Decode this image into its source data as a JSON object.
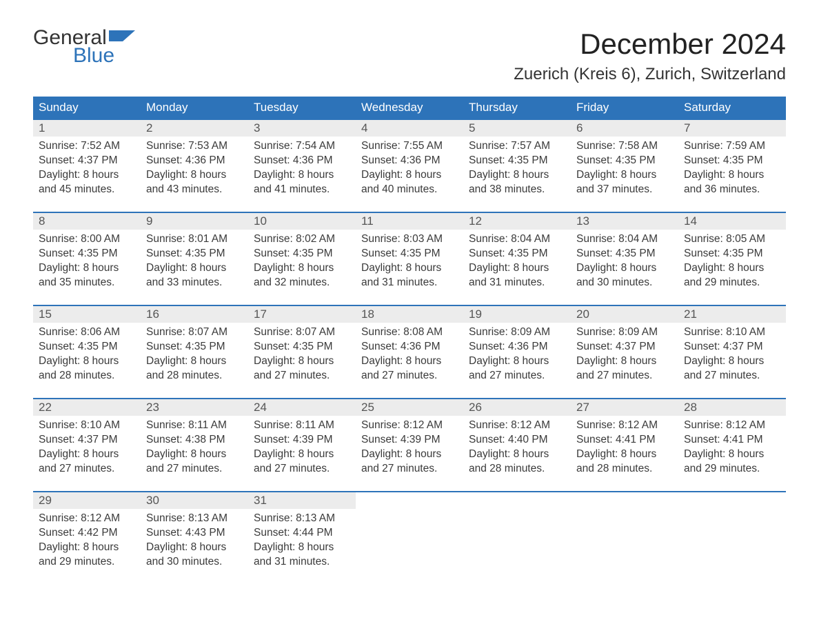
{
  "logo": {
    "word1": "General",
    "word2": "Blue",
    "accent_color": "#2d73b9"
  },
  "header": {
    "month_title": "December 2024",
    "location": "Zuerich (Kreis 6), Zurich, Switzerland"
  },
  "colors": {
    "header_bg": "#2d73b9",
    "header_text": "#ffffff",
    "daynum_bg": "#ececec",
    "text": "#3a3a3a",
    "row_border": "#2d73b9",
    "background": "#ffffff"
  },
  "typography": {
    "title_fontsize_pt": 32,
    "location_fontsize_pt": 18,
    "th_fontsize_pt": 13,
    "body_fontsize_pt": 12
  },
  "calendar": {
    "columns": [
      "Sunday",
      "Monday",
      "Tuesday",
      "Wednesday",
      "Thursday",
      "Friday",
      "Saturday"
    ],
    "weeks": [
      [
        {
          "n": "1",
          "sunrise": "Sunrise: 7:52 AM",
          "sunset": "Sunset: 4:37 PM",
          "d1": "Daylight: 8 hours",
          "d2": "and 45 minutes."
        },
        {
          "n": "2",
          "sunrise": "Sunrise: 7:53 AM",
          "sunset": "Sunset: 4:36 PM",
          "d1": "Daylight: 8 hours",
          "d2": "and 43 minutes."
        },
        {
          "n": "3",
          "sunrise": "Sunrise: 7:54 AM",
          "sunset": "Sunset: 4:36 PM",
          "d1": "Daylight: 8 hours",
          "d2": "and 41 minutes."
        },
        {
          "n": "4",
          "sunrise": "Sunrise: 7:55 AM",
          "sunset": "Sunset: 4:36 PM",
          "d1": "Daylight: 8 hours",
          "d2": "and 40 minutes."
        },
        {
          "n": "5",
          "sunrise": "Sunrise: 7:57 AM",
          "sunset": "Sunset: 4:35 PM",
          "d1": "Daylight: 8 hours",
          "d2": "and 38 minutes."
        },
        {
          "n": "6",
          "sunrise": "Sunrise: 7:58 AM",
          "sunset": "Sunset: 4:35 PM",
          "d1": "Daylight: 8 hours",
          "d2": "and 37 minutes."
        },
        {
          "n": "7",
          "sunrise": "Sunrise: 7:59 AM",
          "sunset": "Sunset: 4:35 PM",
          "d1": "Daylight: 8 hours",
          "d2": "and 36 minutes."
        }
      ],
      [
        {
          "n": "8",
          "sunrise": "Sunrise: 8:00 AM",
          "sunset": "Sunset: 4:35 PM",
          "d1": "Daylight: 8 hours",
          "d2": "and 35 minutes."
        },
        {
          "n": "9",
          "sunrise": "Sunrise: 8:01 AM",
          "sunset": "Sunset: 4:35 PM",
          "d1": "Daylight: 8 hours",
          "d2": "and 33 minutes."
        },
        {
          "n": "10",
          "sunrise": "Sunrise: 8:02 AM",
          "sunset": "Sunset: 4:35 PM",
          "d1": "Daylight: 8 hours",
          "d2": "and 32 minutes."
        },
        {
          "n": "11",
          "sunrise": "Sunrise: 8:03 AM",
          "sunset": "Sunset: 4:35 PM",
          "d1": "Daylight: 8 hours",
          "d2": "and 31 minutes."
        },
        {
          "n": "12",
          "sunrise": "Sunrise: 8:04 AM",
          "sunset": "Sunset: 4:35 PM",
          "d1": "Daylight: 8 hours",
          "d2": "and 31 minutes."
        },
        {
          "n": "13",
          "sunrise": "Sunrise: 8:04 AM",
          "sunset": "Sunset: 4:35 PM",
          "d1": "Daylight: 8 hours",
          "d2": "and 30 minutes."
        },
        {
          "n": "14",
          "sunrise": "Sunrise: 8:05 AM",
          "sunset": "Sunset: 4:35 PM",
          "d1": "Daylight: 8 hours",
          "d2": "and 29 minutes."
        }
      ],
      [
        {
          "n": "15",
          "sunrise": "Sunrise: 8:06 AM",
          "sunset": "Sunset: 4:35 PM",
          "d1": "Daylight: 8 hours",
          "d2": "and 28 minutes."
        },
        {
          "n": "16",
          "sunrise": "Sunrise: 8:07 AM",
          "sunset": "Sunset: 4:35 PM",
          "d1": "Daylight: 8 hours",
          "d2": "and 28 minutes."
        },
        {
          "n": "17",
          "sunrise": "Sunrise: 8:07 AM",
          "sunset": "Sunset: 4:35 PM",
          "d1": "Daylight: 8 hours",
          "d2": "and 27 minutes."
        },
        {
          "n": "18",
          "sunrise": "Sunrise: 8:08 AM",
          "sunset": "Sunset: 4:36 PM",
          "d1": "Daylight: 8 hours",
          "d2": "and 27 minutes."
        },
        {
          "n": "19",
          "sunrise": "Sunrise: 8:09 AM",
          "sunset": "Sunset: 4:36 PM",
          "d1": "Daylight: 8 hours",
          "d2": "and 27 minutes."
        },
        {
          "n": "20",
          "sunrise": "Sunrise: 8:09 AM",
          "sunset": "Sunset: 4:37 PM",
          "d1": "Daylight: 8 hours",
          "d2": "and 27 minutes."
        },
        {
          "n": "21",
          "sunrise": "Sunrise: 8:10 AM",
          "sunset": "Sunset: 4:37 PM",
          "d1": "Daylight: 8 hours",
          "d2": "and 27 minutes."
        }
      ],
      [
        {
          "n": "22",
          "sunrise": "Sunrise: 8:10 AM",
          "sunset": "Sunset: 4:37 PM",
          "d1": "Daylight: 8 hours",
          "d2": "and 27 minutes."
        },
        {
          "n": "23",
          "sunrise": "Sunrise: 8:11 AM",
          "sunset": "Sunset: 4:38 PM",
          "d1": "Daylight: 8 hours",
          "d2": "and 27 minutes."
        },
        {
          "n": "24",
          "sunrise": "Sunrise: 8:11 AM",
          "sunset": "Sunset: 4:39 PM",
          "d1": "Daylight: 8 hours",
          "d2": "and 27 minutes."
        },
        {
          "n": "25",
          "sunrise": "Sunrise: 8:12 AM",
          "sunset": "Sunset: 4:39 PM",
          "d1": "Daylight: 8 hours",
          "d2": "and 27 minutes."
        },
        {
          "n": "26",
          "sunrise": "Sunrise: 8:12 AM",
          "sunset": "Sunset: 4:40 PM",
          "d1": "Daylight: 8 hours",
          "d2": "and 28 minutes."
        },
        {
          "n": "27",
          "sunrise": "Sunrise: 8:12 AM",
          "sunset": "Sunset: 4:41 PM",
          "d1": "Daylight: 8 hours",
          "d2": "and 28 minutes."
        },
        {
          "n": "28",
          "sunrise": "Sunrise: 8:12 AM",
          "sunset": "Sunset: 4:41 PM",
          "d1": "Daylight: 8 hours",
          "d2": "and 29 minutes."
        }
      ],
      [
        {
          "n": "29",
          "sunrise": "Sunrise: 8:12 AM",
          "sunset": "Sunset: 4:42 PM",
          "d1": "Daylight: 8 hours",
          "d2": "and 29 minutes."
        },
        {
          "n": "30",
          "sunrise": "Sunrise: 8:13 AM",
          "sunset": "Sunset: 4:43 PM",
          "d1": "Daylight: 8 hours",
          "d2": "and 30 minutes."
        },
        {
          "n": "31",
          "sunrise": "Sunrise: 8:13 AM",
          "sunset": "Sunset: 4:44 PM",
          "d1": "Daylight: 8 hours",
          "d2": "and 31 minutes."
        },
        null,
        null,
        null,
        null
      ]
    ]
  }
}
